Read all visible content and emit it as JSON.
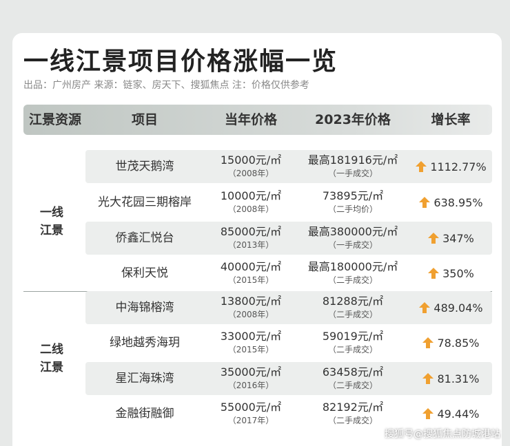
{
  "title": "一线江景项目价格涨幅一览",
  "subtitle": "出品：广州房产   来源：链家、房天下、搜狐焦点  注：价格仅供参考",
  "headers": {
    "source": "江景资源",
    "project": "项目",
    "old_price": "当年价格",
    "new_price": "2023年价格",
    "growth": "增长率"
  },
  "groups": [
    {
      "label_line1": "一线",
      "label_line2": "江景"
    },
    {
      "label_line1": "二线",
      "label_line2": "江景"
    }
  ],
  "rows": [
    {
      "project": "世茂天鹅湾",
      "old_price": "15000元/㎡",
      "old_year": "（2008年）",
      "new_price": "最高181916元/㎡",
      "new_note": "（一手成交）",
      "growth": "1112.77%"
    },
    {
      "project": "光大花园三期榕岸",
      "old_price": "10000元/㎡",
      "old_year": "（2008年）",
      "new_price": "73895元/㎡",
      "new_note": "（二手均价）",
      "growth": "638.95%"
    },
    {
      "project": "侨鑫汇悦台",
      "old_price": "85000元/㎡",
      "old_year": "（2013年）",
      "new_price": "最高380000元/㎡",
      "new_note": "（一手成交）",
      "growth": "347%"
    },
    {
      "project": "保利天悦",
      "old_price": "40000元/㎡",
      "old_year": "（2015年）",
      "new_price": "最高180000元/㎡",
      "new_note": "（二手成交）",
      "growth": "350%"
    },
    {
      "project": "中海锦榕湾",
      "old_price": "13800元/㎡",
      "old_year": "（2008年）",
      "new_price": "81288元/㎡",
      "new_note": "（二手成交）",
      "growth": "489.04%"
    },
    {
      "project": "绿地越秀海玥",
      "old_price": "33000元/㎡",
      "old_year": "（2015年）",
      "new_price": "59019元/㎡",
      "new_note": "（二手成交）",
      "growth": "78.85%"
    },
    {
      "project": "星汇海珠湾",
      "old_price": "35000元/㎡",
      "old_year": "（2016年）",
      "new_price": "63458元/㎡",
      "new_note": "（二手成交）",
      "growth": "81.31%"
    },
    {
      "project": "金融街融御",
      "old_price": "55000元/㎡",
      "old_year": "（2017年）",
      "new_price": "82192元/㎡",
      "new_note": "（二手成交）",
      "growth": "49.44%"
    }
  ],
  "arrow_icon": "up-arrow-icon",
  "colors": {
    "arrow": "#f0a030",
    "header": "#c9cfcc",
    "shade": "#eceeed"
  },
  "watermark": "搜狐号@搜狐焦点防城港站"
}
